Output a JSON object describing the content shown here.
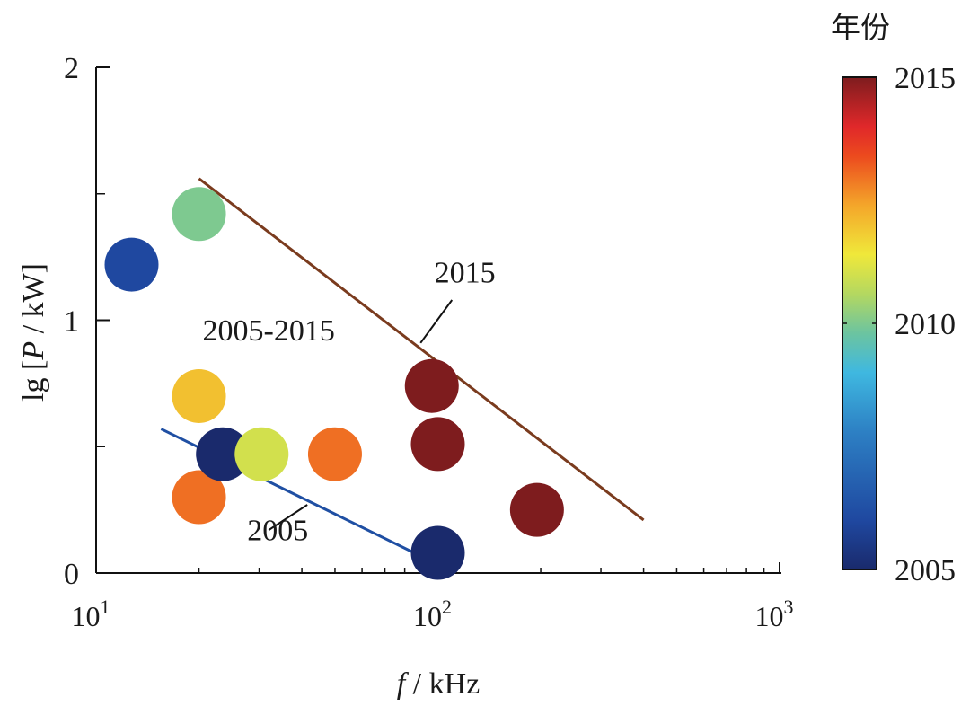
{
  "chart_data": {
    "type": "scatter",
    "xlabel_italic": "f",
    "xlabel_rest": " / kHz",
    "ylabel_pre": "lg [",
    "ylabel_italic": "P",
    "ylabel_post": " / kW]",
    "x_scale": "log",
    "xlim": [
      10,
      1000
    ],
    "ylim": [
      0,
      2
    ],
    "x_ticks": [
      {
        "value": 10,
        "base": "10",
        "exp": "1"
      },
      {
        "value": 100,
        "base": "10",
        "exp": "2"
      },
      {
        "value": 1000,
        "base": "10",
        "exp": "3"
      }
    ],
    "y_ticks": [
      {
        "value": 0,
        "label": "0"
      },
      {
        "value": 1,
        "label": "1"
      },
      {
        "value": 2,
        "label": "2"
      }
    ],
    "y_minor_ticks": [
      0.5,
      1.5
    ],
    "grid": false,
    "points": [
      {
        "x": 12.7,
        "y": 1.22,
        "year": 2006
      },
      {
        "x": 20.0,
        "y": 1.42,
        "year": 2010
      },
      {
        "x": 20.0,
        "y": 0.7,
        "year": 2012
      },
      {
        "x": 20.0,
        "y": 0.3,
        "year": 2013
      },
      {
        "x": 23.5,
        "y": 0.47,
        "year": 2005
      },
      {
        "x": 30.5,
        "y": 0.47,
        "year": 2011
      },
      {
        "x": 50.0,
        "y": 0.47,
        "year": 2013
      },
      {
        "x": 96.0,
        "y": 0.74,
        "year": 2015
      },
      {
        "x": 100.0,
        "y": 0.51,
        "year": 2015
      },
      {
        "x": 100.0,
        "y": 0.08,
        "year": 2005
      },
      {
        "x": 195.0,
        "y": 0.25,
        "year": 2015
      }
    ],
    "lines": [
      {
        "name": "2015",
        "color": "#7a3b1e",
        "points": [
          [
            20,
            1.56
          ],
          [
            400,
            0.21
          ]
        ]
      },
      {
        "name": "2005",
        "color": "#1f4fa3",
        "points": [
          [
            15.5,
            0.57
          ],
          [
            98,
            0.04
          ]
        ]
      }
    ],
    "annotations": [
      {
        "text": "2015",
        "label_at": [
          120,
          1.15
        ],
        "leader": [
          [
            110,
            1.08
          ],
          [
            89,
            0.91
          ]
        ]
      },
      {
        "text": "2005-2015",
        "label_at": [
          32,
          0.92
        ],
        "leader": null
      },
      {
        "text": "2005",
        "label_at": [
          34,
          0.13
        ],
        "leader": [
          [
            32,
            0.17
          ],
          [
            41.5,
            0.27
          ]
        ]
      }
    ],
    "colorbar": {
      "title": "年份",
      "min": 2005,
      "max": 2015,
      "tick_labels": [
        "2005",
        "2010",
        "2015"
      ],
      "tick_values": [
        2005,
        2010,
        2015
      ],
      "colormap": "jet"
    }
  }
}
